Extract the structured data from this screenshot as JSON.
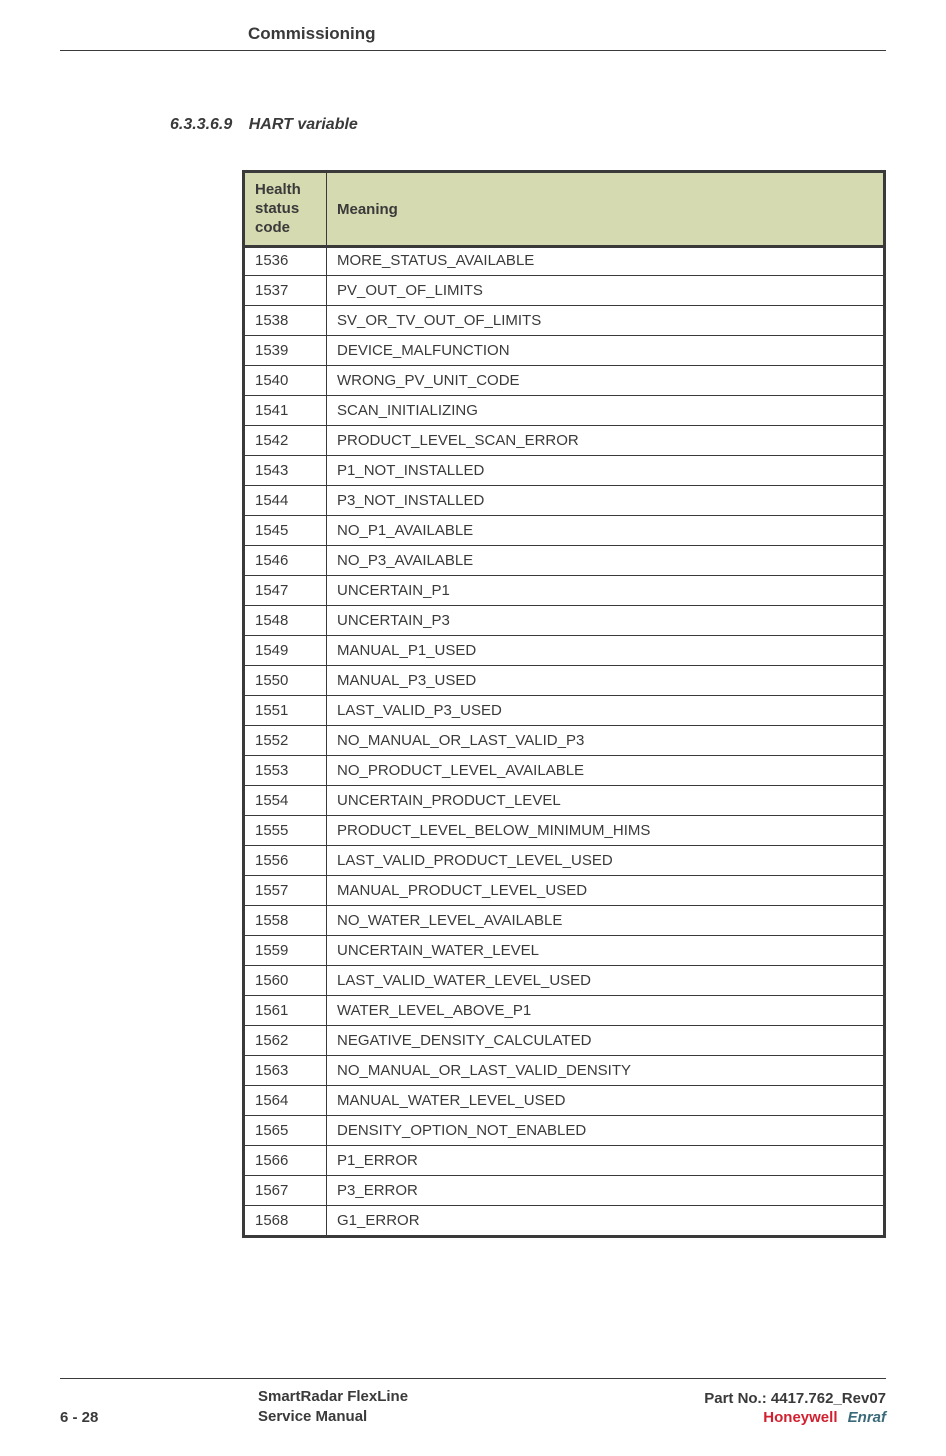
{
  "header": {
    "chapter_title": "Commissioning"
  },
  "section": {
    "number": "6.3.3.6.9",
    "title": "HART variable"
  },
  "table": {
    "columns": {
      "code": "Health status code",
      "meaning": "Meaning"
    },
    "header_bg": "#d6dab0",
    "border_color": "#3a3a3a",
    "rows": [
      {
        "code": "1536",
        "meaning": "MORE_STATUS_AVAILABLE"
      },
      {
        "code": "1537",
        "meaning": "PV_OUT_OF_LIMITS"
      },
      {
        "code": "1538",
        "meaning": "SV_OR_TV_OUT_OF_LIMITS"
      },
      {
        "code": "1539",
        "meaning": "DEVICE_MALFUNCTION"
      },
      {
        "code": "1540",
        "meaning": "WRONG_PV_UNIT_CODE"
      },
      {
        "code": "1541",
        "meaning": "SCAN_INITIALIZING"
      },
      {
        "code": "1542",
        "meaning": "PRODUCT_LEVEL_SCAN_ERROR"
      },
      {
        "code": "1543",
        "meaning": "P1_NOT_INSTALLED"
      },
      {
        "code": "1544",
        "meaning": "P3_NOT_INSTALLED"
      },
      {
        "code": "1545",
        "meaning": "NO_P1_AVAILABLE"
      },
      {
        "code": "1546",
        "meaning": "NO_P3_AVAILABLE"
      },
      {
        "code": "1547",
        "meaning": "UNCERTAIN_P1"
      },
      {
        "code": "1548",
        "meaning": "UNCERTAIN_P3"
      },
      {
        "code": "1549",
        "meaning": "MANUAL_P1_USED"
      },
      {
        "code": "1550",
        "meaning": "MANUAL_P3_USED"
      },
      {
        "code": "1551",
        "meaning": "LAST_VALID_P3_USED"
      },
      {
        "code": "1552",
        "meaning": "NO_MANUAL_OR_LAST_VALID_P3"
      },
      {
        "code": "1553",
        "meaning": "NO_PRODUCT_LEVEL_AVAILABLE"
      },
      {
        "code": "1554",
        "meaning": "UNCERTAIN_PRODUCT_LEVEL"
      },
      {
        "code": "1555",
        "meaning": "PRODUCT_LEVEL_BELOW_MINIMUM_HIMS"
      },
      {
        "code": "1556",
        "meaning": "LAST_VALID_PRODUCT_LEVEL_USED"
      },
      {
        "code": "1557",
        "meaning": "MANUAL_PRODUCT_LEVEL_USED"
      },
      {
        "code": "1558",
        "meaning": "NO_WATER_LEVEL_AVAILABLE"
      },
      {
        "code": "1559",
        "meaning": "UNCERTAIN_WATER_LEVEL"
      },
      {
        "code": "1560",
        "meaning": "LAST_VALID_WATER_LEVEL_USED"
      },
      {
        "code": "1561",
        "meaning": "WATER_LEVEL_ABOVE_P1"
      },
      {
        "code": "1562",
        "meaning": "NEGATIVE_DENSITY_CALCULATED"
      },
      {
        "code": "1563",
        "meaning": "NO_MANUAL_OR_LAST_VALID_DENSITY"
      },
      {
        "code": "1564",
        "meaning": "MANUAL_WATER_LEVEL_USED"
      },
      {
        "code": "1565",
        "meaning": "DENSITY_OPTION_NOT_ENABLED"
      },
      {
        "code": "1566",
        "meaning": "P1_ERROR"
      },
      {
        "code": "1567",
        "meaning": "P3_ERROR"
      },
      {
        "code": "1568",
        "meaning": "G1_ERROR"
      }
    ]
  },
  "footer": {
    "page_number": "6 - 28",
    "doc_title_line1": "SmartRadar FlexLine",
    "doc_title_line2": "Service Manual",
    "part_no": "Part No.: 4417.762_Rev07",
    "brand_primary": "Honeywell",
    "brand_secondary": "Enraf"
  }
}
